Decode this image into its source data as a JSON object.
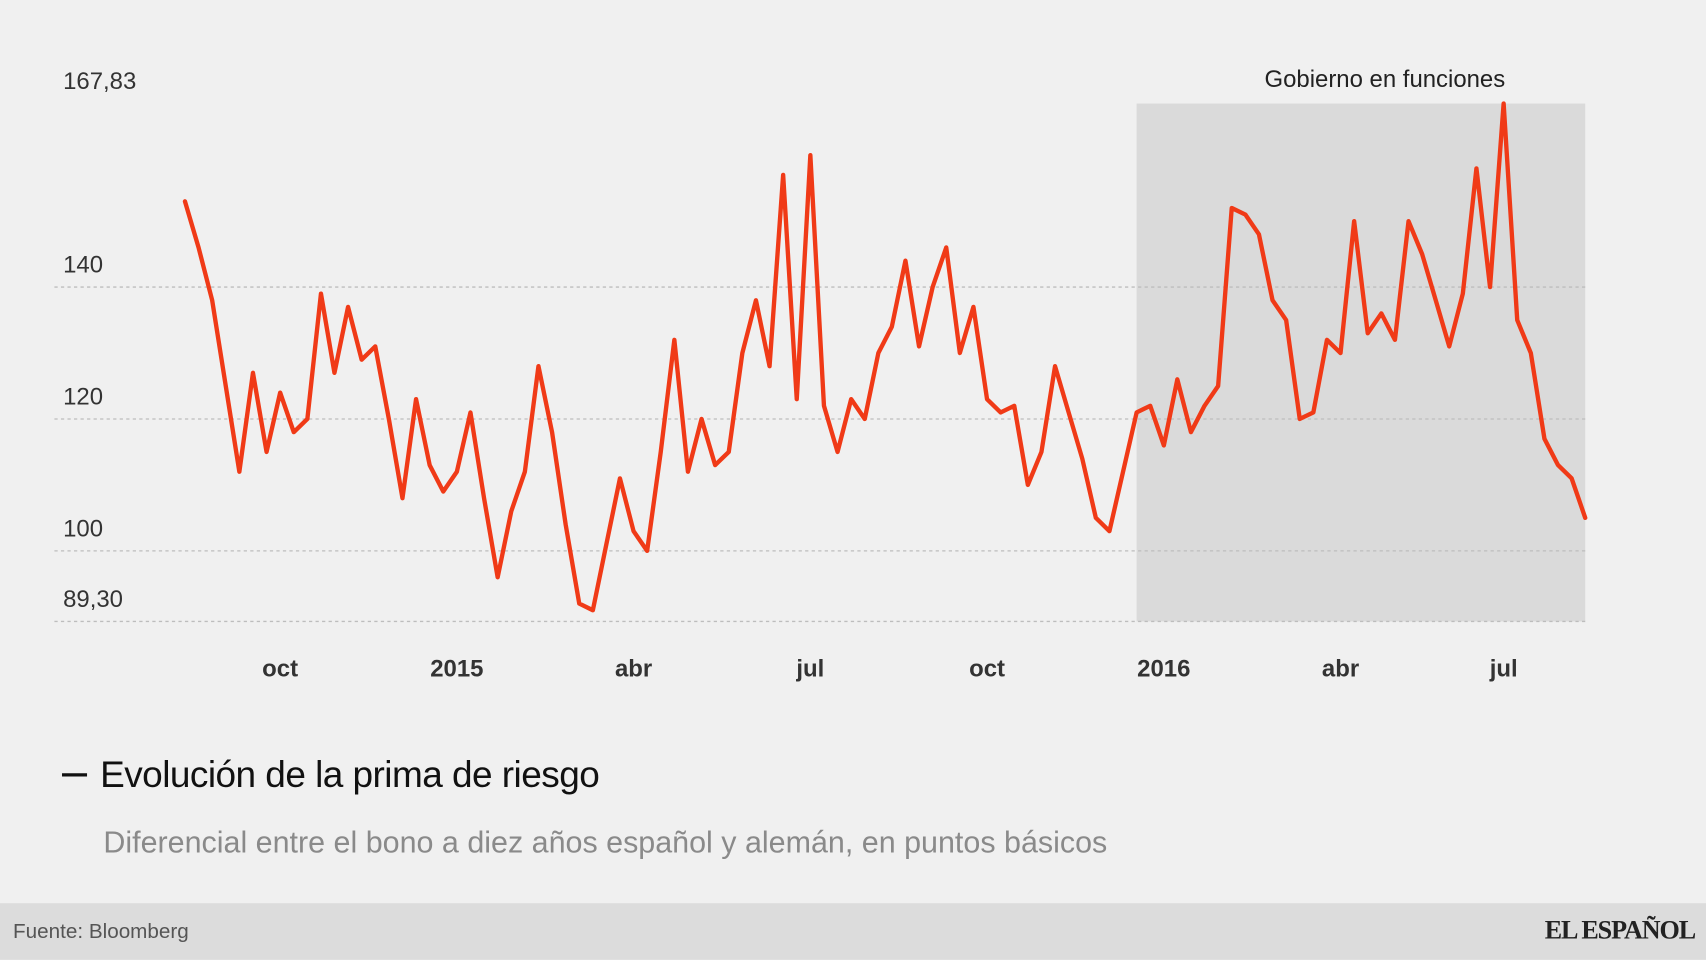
{
  "chart_data": {
    "type": "line",
    "subtitle": "Diferencial entre el bono a diez años español y alemán, en puntos básicos",
    "source": "Fuente: Bloomberg",
    "brand": "EL ESPAÑOL",
    "categories": [
      null,
      null,
      null,
      null,
      null,
      null,
      null,
      "oct",
      null,
      null,
      null,
      null,
      null,
      null,
      null,
      null,
      null,
      null,
      null,
      null,
      "2015",
      null,
      null,
      null,
      null,
      null,
      null,
      null,
      null,
      null,
      null,
      null,
      null,
      "abr",
      null,
      null,
      null,
      null,
      null,
      null,
      null,
      null,
      null,
      null,
      null,
      null,
      "jul",
      null,
      null,
      null,
      null,
      null,
      null,
      null,
      null,
      null,
      null,
      null,
      null,
      "oct",
      null,
      null,
      null,
      null,
      null,
      null,
      null,
      null,
      null,
      null,
      null,
      null,
      "2016",
      null,
      null,
      null,
      null,
      null,
      null,
      null,
      null,
      null,
      null,
      null,
      null,
      "abr",
      null,
      null,
      null,
      null,
      null,
      null,
      null,
      null,
      null,
      null,
      null,
      "jul",
      null,
      null,
      null,
      null,
      null,
      null
    ],
    "series": [
      {
        "name": "Evolución de la prima de riesgo",
        "color": "#f03a17",
        "values": [
          153,
          146,
          138,
          125,
          112,
          127,
          115,
          124,
          118,
          120,
          139,
          127,
          137,
          129,
          131,
          120,
          108,
          123,
          113,
          109,
          112,
          121,
          108,
          96,
          106,
          112,
          128,
          118,
          104,
          92,
          91,
          101,
          111,
          103,
          100,
          115,
          132,
          112,
          120,
          113,
          115,
          130,
          138,
          128,
          157,
          123,
          160,
          122,
          115,
          123,
          120,
          130,
          134,
          144,
          131,
          140,
          146,
          130,
          137,
          123,
          121,
          122,
          110,
          115,
          128,
          121,
          114,
          105,
          103,
          112,
          121,
          122,
          116,
          126,
          118,
          122,
          125,
          152,
          151,
          148,
          138,
          135,
          120,
          121,
          132,
          130,
          150,
          133,
          136,
          132,
          150,
          145,
          138,
          131,
          139,
          158,
          140,
          167.83,
          135,
          130,
          117,
          113,
          111,
          105
        ]
      }
    ],
    "ylim": [
      89.3,
      167.83
    ],
    "yticks": [
      {
        "value": 89.3,
        "label": "89,30"
      },
      100,
      120,
      140,
      {
        "value": 167.83,
        "label": "167,83"
      }
    ],
    "grid": true,
    "highlight": {
      "label": "Gobierno en funciones",
      "from": 70
    }
  }
}
